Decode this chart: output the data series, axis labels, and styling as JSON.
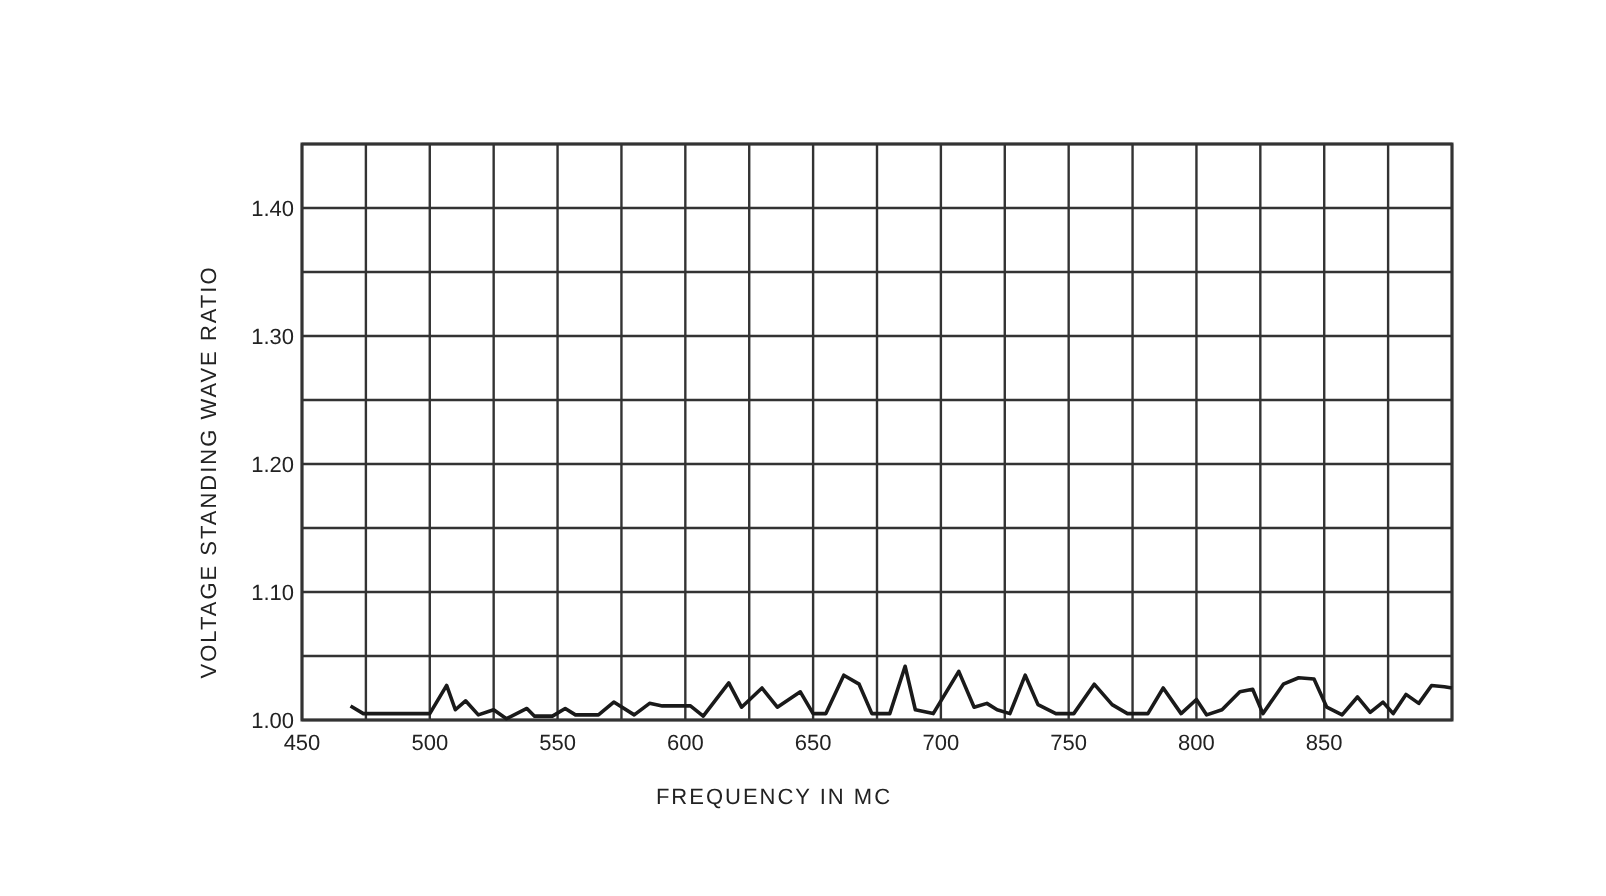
{
  "chart_data": {
    "type": "line",
    "xlabel": "FREQUENCY IN MC",
    "ylabel": "VOLTAGE STANDING WAVE RATIO",
    "xlim": [
      450,
      900
    ],
    "ylim": [
      1.0,
      1.45
    ],
    "xticks": [
      450,
      {
        "value": 475,
        "label": null
      },
      500,
      {
        "value": 525,
        "label": null
      },
      550,
      {
        "value": 575,
        "label": null
      },
      600,
      {
        "value": 625,
        "label": null
      },
      650,
      {
        "value": 675,
        "label": null
      },
      700,
      {
        "value": 725,
        "label": null
      },
      750,
      {
        "value": 775,
        "label": null
      },
      800,
      {
        "value": 825,
        "label": null
      },
      850,
      {
        "value": 875,
        "label": null
      },
      {
        "value": 900,
        "label": null
      }
    ],
    "yticks": [
      {
        "value": 1.0,
        "label": "1.00"
      },
      {
        "value": 1.05,
        "label": null
      },
      {
        "value": 1.1,
        "label": "1.10"
      },
      {
        "value": 1.15,
        "label": null
      },
      {
        "value": 1.2,
        "label": "1.20"
      },
      {
        "value": 1.25,
        "label": null
      },
      {
        "value": 1.3,
        "label": "1.30"
      },
      {
        "value": 1.35,
        "label": null
      },
      {
        "value": 1.4,
        "label": "1.40"
      },
      {
        "value": 1.45,
        "label": null
      }
    ],
    "grid": true,
    "series": [
      {
        "color": "#1a1a1a",
        "x": [
          469,
          474,
          500,
          506.6,
          510,
          514,
          519,
          525,
          530,
          538,
          541,
          548,
          553,
          557,
          566,
          572,
          580,
          586,
          591,
          602,
          607,
          617,
          622,
          630,
          636,
          645,
          650,
          655,
          662,
          668,
          673,
          680,
          686,
          690,
          697,
          707,
          713,
          718,
          722,
          727,
          733,
          738,
          745,
          752,
          760,
          767,
          773,
          781,
          787,
          794,
          800,
          804,
          810,
          817,
          822,
          826,
          834,
          840,
          846,
          851,
          857,
          863,
          868,
          873,
          877,
          882,
          887,
          892,
          897,
          900
        ],
        "values": [
          1.011,
          1.005,
          1.005,
          1.027,
          1.008,
          1.015,
          1.004,
          1.008,
          1.001,
          1.009,
          1.003,
          1.003,
          1.009,
          1.004,
          1.004,
          1.014,
          1.004,
          1.013,
          1.011,
          1.011,
          1.003,
          1.029,
          1.01,
          1.025,
          1.01,
          1.022,
          1.005,
          1.005,
          1.035,
          1.028,
          1.005,
          1.005,
          1.042,
          1.008,
          1.005,
          1.038,
          1.01,
          1.013,
          1.008,
          1.005,
          1.035,
          1.012,
          1.005,
          1.005,
          1.028,
          1.012,
          1.005,
          1.005,
          1.025,
          1.005,
          1.016,
          1.004,
          1.008,
          1.022,
          1.024,
          1.005,
          1.028,
          1.033,
          1.032,
          1.01,
          1.004,
          1.018,
          1.006,
          1.014,
          1.005,
          1.02,
          1.013,
          1.027,
          1.026,
          1.025
        ]
      }
    ]
  }
}
